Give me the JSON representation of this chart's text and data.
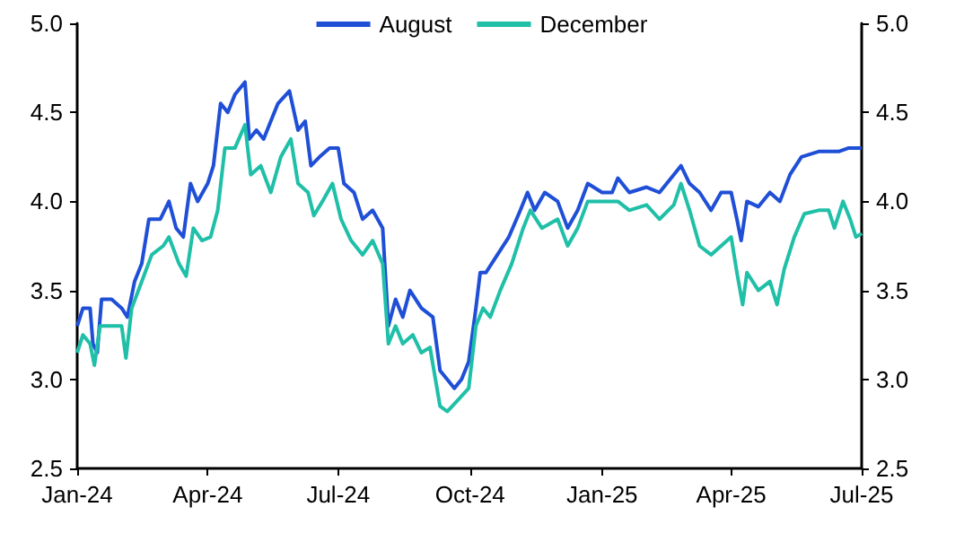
{
  "chart_data": {
    "type": "line",
    "legend": "top",
    "grid": false,
    "marker": "none",
    "line_style": "solid",
    "xlim": [
      "2024-01-01",
      "2025-07-01"
    ],
    "xticks": [
      {
        "value": "2024-01-01",
        "label": "Jan-24"
      },
      {
        "value": "2024-04-01",
        "label": "Apr-24"
      },
      {
        "value": "2024-07-01",
        "label": "Jul-24"
      },
      {
        "value": "2024-10-01",
        "label": "Oct-24"
      },
      {
        "value": "2025-01-01",
        "label": "Jan-25"
      },
      {
        "value": "2025-04-01",
        "label": "Apr-25"
      },
      {
        "value": "2025-07-01",
        "label": "Jul-25"
      }
    ],
    "ylim": [
      2.5,
      5.0
    ],
    "yticks": [
      {
        "value": 2.5,
        "label": "2.5"
      },
      {
        "value": 3,
        "label": "3.0"
      },
      {
        "value": 3.5,
        "label": "3.5"
      },
      {
        "value": 4,
        "label": "4.0"
      },
      {
        "value": 4.5,
        "label": "4.5"
      },
      {
        "value": 5,
        "label": "5.0"
      }
    ],
    "y2lim": [
      2.5,
      5.0
    ],
    "y2ticks": [
      {
        "value": 2.5,
        "label": "2.5"
      },
      {
        "value": 3,
        "label": "3.0"
      },
      {
        "value": 3.5,
        "label": "3.5"
      },
      {
        "value": 4,
        "label": "4.0"
      },
      {
        "value": 4.5,
        "label": "4.5"
      },
      {
        "value": 5,
        "label": "5.0"
      }
    ],
    "series": [
      {
        "name": "August",
        "color": "#1f4fd6",
        "x": [
          "2024-01-01",
          "2024-01-05",
          "2024-01-10",
          "2024-01-12",
          "2024-01-15",
          "2024-01-18",
          "2024-01-25",
          "2024-02-01",
          "2024-02-05",
          "2024-02-10",
          "2024-02-15",
          "2024-02-20",
          "2024-02-28",
          "2024-03-05",
          "2024-03-10",
          "2024-03-15",
          "2024-03-20",
          "2024-03-25",
          "2024-04-01",
          "2024-04-05",
          "2024-04-10",
          "2024-04-15",
          "2024-04-20",
          "2024-04-27",
          "2024-04-30",
          "2024-05-05",
          "2024-05-10",
          "2024-05-15",
          "2024-05-20",
          "2024-05-28",
          "2024-06-03",
          "2024-06-08",
          "2024-06-12",
          "2024-06-18",
          "2024-06-25",
          "2024-07-01",
          "2024-07-05",
          "2024-07-12",
          "2024-07-18",
          "2024-07-25",
          "2024-08-01",
          "2024-08-05",
          "2024-08-10",
          "2024-08-15",
          "2024-08-20",
          "2024-08-28",
          "2024-09-05",
          "2024-09-10",
          "2024-09-15",
          "2024-09-20",
          "2024-09-25",
          "2024-09-30",
          "2024-10-05",
          "2024-10-08",
          "2024-10-12",
          "2024-10-20",
          "2024-10-28",
          "2024-11-05",
          "2024-11-10",
          "2024-11-15",
          "2024-11-22",
          "2024-12-01",
          "2024-12-08",
          "2024-12-15",
          "2024-12-22",
          "2025-01-01",
          "2025-01-08",
          "2025-01-12",
          "2025-01-20",
          "2025-02-01",
          "2025-02-10",
          "2025-02-20",
          "2025-02-25",
          "2025-03-03",
          "2025-03-10",
          "2025-03-18",
          "2025-03-25",
          "2025-04-01",
          "2025-04-05",
          "2025-04-08",
          "2025-04-12",
          "2025-04-20",
          "2025-04-28",
          "2025-05-05",
          "2025-05-12",
          "2025-05-20",
          "2025-06-01",
          "2025-06-15",
          "2025-06-22",
          "2025-07-01"
        ],
        "values": [
          3.3,
          3.4,
          3.4,
          3.2,
          3.15,
          3.45,
          3.45,
          3.4,
          3.35,
          3.55,
          3.65,
          3.9,
          3.9,
          4.0,
          3.85,
          3.8,
          4.1,
          4.0,
          4.1,
          4.2,
          4.55,
          4.5,
          4.6,
          4.67,
          4.35,
          4.4,
          4.35,
          4.45,
          4.55,
          4.62,
          4.4,
          4.45,
          4.2,
          4.25,
          4.3,
          4.3,
          4.1,
          4.05,
          3.9,
          3.95,
          3.85,
          3.3,
          3.45,
          3.35,
          3.5,
          3.4,
          3.35,
          3.05,
          3.0,
          2.95,
          3.0,
          3.1,
          3.4,
          3.6,
          3.6,
          3.7,
          3.8,
          3.95,
          4.05,
          3.95,
          4.05,
          4.0,
          3.85,
          3.95,
          4.1,
          4.05,
          4.05,
          4.13,
          4.05,
          4.08,
          4.05,
          4.15,
          4.2,
          4.1,
          4.05,
          3.95,
          4.05,
          4.05,
          3.9,
          3.78,
          4.0,
          3.97,
          4.05,
          4.0,
          4.15,
          4.25,
          4.28,
          4.28,
          4.3,
          4.3
        ]
      },
      {
        "name": "December",
        "color": "#1fbfa8",
        "x": [
          "2024-01-01",
          "2024-01-05",
          "2024-01-10",
          "2024-01-13",
          "2024-01-17",
          "2024-01-25",
          "2024-02-01",
          "2024-02-04",
          "2024-02-08",
          "2024-02-15",
          "2024-02-22",
          "2024-03-01",
          "2024-03-05",
          "2024-03-12",
          "2024-03-17",
          "2024-03-22",
          "2024-03-28",
          "2024-04-03",
          "2024-04-08",
          "2024-04-13",
          "2024-04-20",
          "2024-04-27",
          "2024-05-01",
          "2024-05-08",
          "2024-05-15",
          "2024-05-22",
          "2024-05-29",
          "2024-06-03",
          "2024-06-10",
          "2024-06-14",
          "2024-06-20",
          "2024-06-27",
          "2024-07-03",
          "2024-07-10",
          "2024-07-18",
          "2024-07-25",
          "2024-08-01",
          "2024-08-05",
          "2024-08-10",
          "2024-08-15",
          "2024-08-22",
          "2024-08-28",
          "2024-09-03",
          "2024-09-10",
          "2024-09-15",
          "2024-09-22",
          "2024-09-30",
          "2024-10-05",
          "2024-10-10",
          "2024-10-15",
          "2024-10-22",
          "2024-10-30",
          "2024-11-07",
          "2024-11-12",
          "2024-11-20",
          "2024-12-01",
          "2024-12-08",
          "2024-12-15",
          "2024-12-22",
          "2025-01-01",
          "2025-01-12",
          "2025-01-20",
          "2025-02-01",
          "2025-02-10",
          "2025-02-20",
          "2025-02-25",
          "2025-03-03",
          "2025-03-10",
          "2025-03-18",
          "2025-03-25",
          "2025-04-01",
          "2025-04-05",
          "2025-04-09",
          "2025-04-12",
          "2025-04-20",
          "2025-04-28",
          "2025-05-03",
          "2025-05-08",
          "2025-05-15",
          "2025-05-22",
          "2025-06-01",
          "2025-06-08",
          "2025-06-12",
          "2025-06-18",
          "2025-06-23",
          "2025-06-27",
          "2025-07-01"
        ],
        "values": [
          3.15,
          3.25,
          3.2,
          3.08,
          3.3,
          3.3,
          3.3,
          3.12,
          3.4,
          3.55,
          3.7,
          3.75,
          3.8,
          3.65,
          3.58,
          3.85,
          3.78,
          3.8,
          3.95,
          4.3,
          4.3,
          4.43,
          4.15,
          4.2,
          4.05,
          4.25,
          4.35,
          4.1,
          4.05,
          3.92,
          4.0,
          4.1,
          3.9,
          3.78,
          3.7,
          3.78,
          3.65,
          3.2,
          3.3,
          3.2,
          3.25,
          3.15,
          3.18,
          2.85,
          2.82,
          2.88,
          2.95,
          3.3,
          3.4,
          3.35,
          3.5,
          3.65,
          3.85,
          3.95,
          3.85,
          3.9,
          3.75,
          3.85,
          4.0,
          4.0,
          4.0,
          3.95,
          3.98,
          3.9,
          3.98,
          4.1,
          3.95,
          3.75,
          3.7,
          3.75,
          3.8,
          3.6,
          3.42,
          3.6,
          3.5,
          3.55,
          3.42,
          3.62,
          3.8,
          3.93,
          3.95,
          3.95,
          3.85,
          4.0,
          3.9,
          3.8,
          3.82
        ]
      }
    ]
  }
}
